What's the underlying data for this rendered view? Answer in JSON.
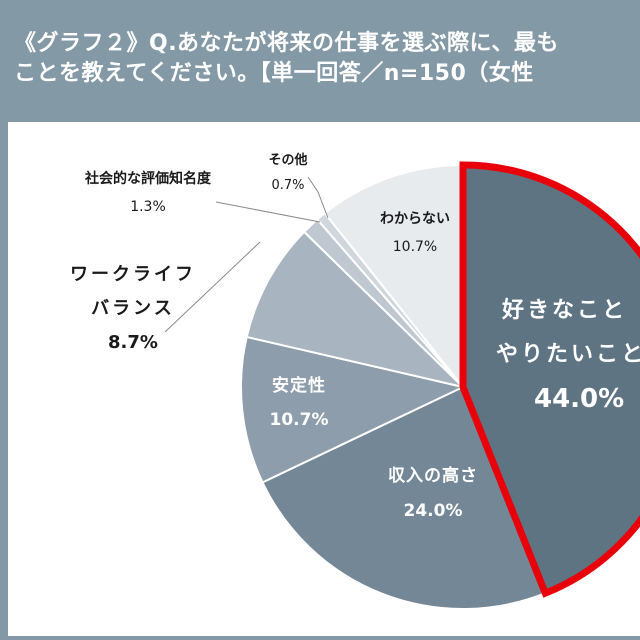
{
  "header": {
    "title_line1": "《グラフ２》Q.あなたが将来の仕事を選ぶ際に、最も",
    "title_line2": "ことを教えてください。【単一回答／n=150（女性"
  },
  "colors": {
    "header_bg": "#8499a6",
    "highlight_border": "#e8000a"
  },
  "chart_data": {
    "type": "pie",
    "title": "《グラフ２》Q.あなたが将来の仕事を選ぶ際に…ことを教えてください。【単一回答／n=150】",
    "start_angle_deg": 0,
    "direction": "clockwise",
    "categories": [
      "好きなこと・やりたいこと",
      "収入の高さ",
      "安定性",
      "ワークライフバランス",
      "社会的な評価知名度",
      "その他",
      "わからない"
    ],
    "values": [
      44.0,
      24.0,
      10.7,
      8.7,
      1.3,
      0.7,
      10.7
    ],
    "slices": [
      {
        "label_lines": [
          "好きなこと",
          "やりたいこと"
        ],
        "value": 44.0,
        "value_text": "44.0%",
        "color": "#5f7483",
        "highlight": true
      },
      {
        "label_lines": [
          "収入の高さ"
        ],
        "value": 24.0,
        "value_text": "24.0%",
        "color": "#738796",
        "highlight": false
      },
      {
        "label_lines": [
          "安定性"
        ],
        "value": 10.7,
        "value_text": "10.7%",
        "color": "#8d9dab",
        "highlight": false
      },
      {
        "label_lines": [
          "ワークライフ",
          "バランス"
        ],
        "value": 8.7,
        "value_text": "8.7%",
        "color": "#a8b4bf",
        "highlight": false
      },
      {
        "label_lines": [
          "社会的な評価知名度"
        ],
        "value": 1.3,
        "value_text": "1.3%",
        "color": "#bfc8d0",
        "highlight": false
      },
      {
        "label_lines": [
          "その他"
        ],
        "value": 0.7,
        "value_text": "0.7%",
        "color": "#cfd6dc",
        "highlight": false
      },
      {
        "label_lines": [
          "わからない"
        ],
        "value": 10.7,
        "value_text": "10.7%",
        "color": "#e8ebee",
        "highlight": false
      }
    ],
    "n": 150,
    "legend": "none (labels placed on/near slices)"
  },
  "labels": {
    "like": {
      "line1": "好きなこと",
      "line2": "やりたいこと",
      "value": "44.0%"
    },
    "income": {
      "line1": "収入の高さ",
      "value": "24.0%"
    },
    "stability": {
      "line1": "安定性",
      "value": "10.7%"
    },
    "wlb": {
      "line1": "ワークライフ",
      "line2": "バランス",
      "value": "8.7%"
    },
    "social": {
      "line1": "社会的な評価知名度",
      "value": "1.3%"
    },
    "other": {
      "line1": "その他",
      "value": "0.7%"
    },
    "unknown": {
      "line1": "わからない",
      "value": "10.7%"
    }
  }
}
